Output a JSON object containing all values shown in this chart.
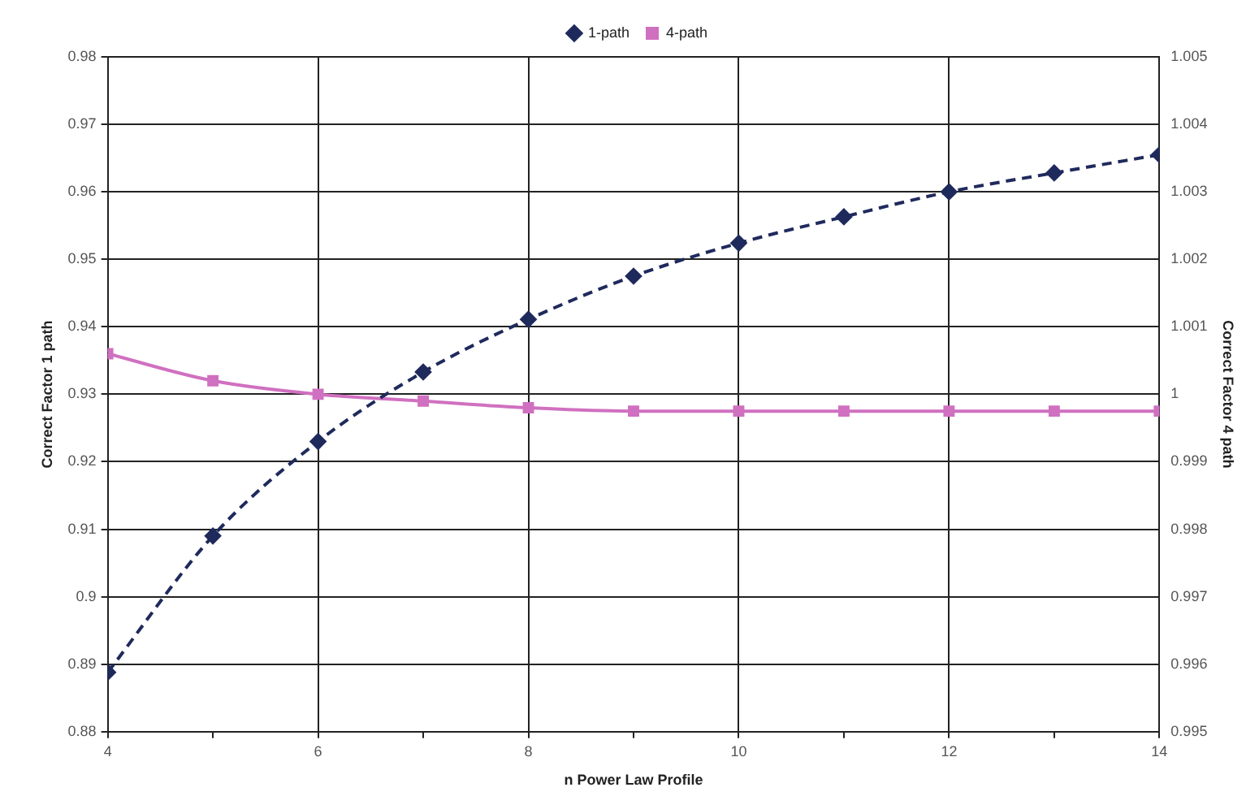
{
  "chart_data": {
    "type": "line",
    "xlabel": "n Power Law Profile",
    "ylabel": "Correct Factor 1 path",
    "y2label": "Correct Factor 4 path",
    "x": [
      4,
      5,
      6,
      7,
      8,
      9,
      10,
      11,
      12,
      13,
      14
    ],
    "series": [
      {
        "name": "1-path",
        "color": "#1f2a5c",
        "marker": "diamond",
        "line_style": "dashed",
        "values": [
          0.8888,
          0.909,
          0.923,
          0.9333,
          0.9411,
          0.9475,
          0.9524,
          0.9563,
          0.96,
          0.9628,
          0.9655
        ]
      },
      {
        "name": "4-path",
        "color": "#d070c0",
        "marker": "square",
        "line_style": "solid",
        "axis": "y2",
        "values": [
          1.0006,
          1.0002,
          1.0,
          0.9999,
          0.9998,
          0.99975,
          0.99975,
          0.99975,
          0.99975,
          0.99975,
          0.99975
        ]
      }
    ],
    "xlim": [
      4,
      14
    ],
    "xticks": [
      4,
      {
        "value": 5,
        "label": null
      },
      6,
      {
        "value": 7,
        "label": null
      },
      8,
      {
        "value": 9,
        "label": null
      },
      10,
      {
        "value": 11,
        "label": null
      },
      12,
      {
        "value": 13,
        "label": null
      },
      14
    ],
    "ylim": [
      0.88,
      0.98
    ],
    "yticks": [
      0.88,
      0.89,
      0.9,
      0.91,
      0.92,
      0.93,
      0.94,
      0.95,
      0.96,
      0.97,
      0.98
    ],
    "y2lim": [
      0.995,
      1.005
    ],
    "y2ticks": [
      0.995,
      0.996,
      0.997,
      0.998,
      0.999,
      1,
      1.001,
      1.002,
      1.003,
      1.004,
      1.005
    ],
    "grid": true,
    "legend": "top"
  }
}
